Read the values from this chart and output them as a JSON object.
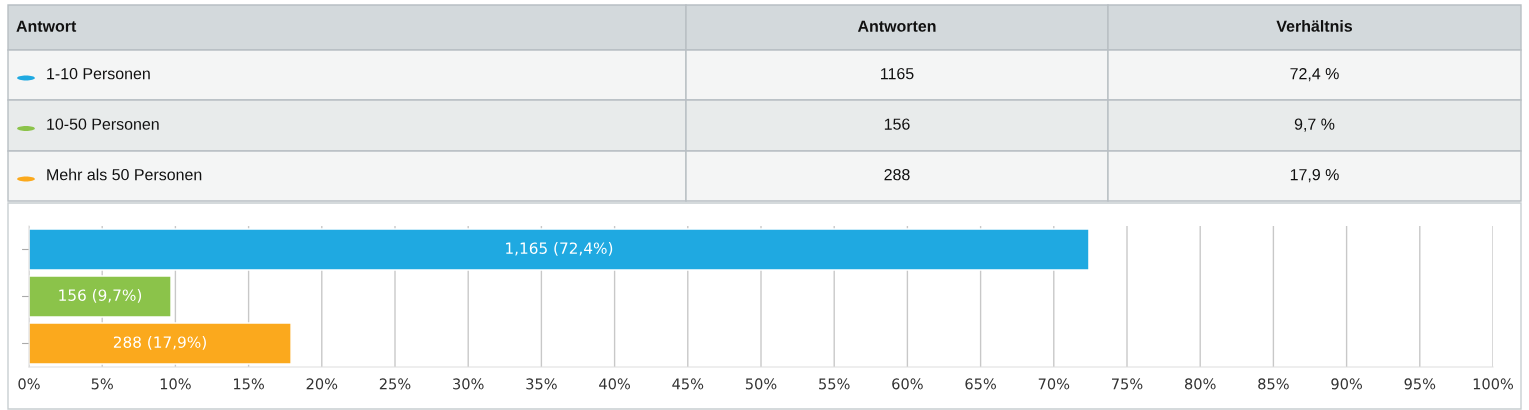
{
  "chart_data": [
    {
      "type": "other",
      "annotations": [
        "Antwort",
        "Antworten",
        "Verhältnis",
        "1-10 Personen",
        "1165",
        "72,4 %",
        "10-50 Personen",
        "156",
        "9,7 %",
        "Mehr als 50 Personen",
        "288",
        "17,9 %"
      ]
    },
    {
      "type": "bar",
      "orientation": "horizontal",
      "categories": [
        null,
        null,
        null
      ],
      "values": [
        72.4,
        9.7,
        17.9
      ],
      "colors": [
        "#1fa9e1",
        "#8bc34a",
        "#fba91d"
      ],
      "value_labels": [
        "1,165 (72,4%)",
        "156 (9,7%)",
        "288 (17,9%)"
      ],
      "xlim": [
        0,
        100
      ],
      "xticks": [
        {
          "value": 0,
          "label": "0%"
        },
        {
          "value": 5,
          "label": "5%"
        },
        {
          "value": 10,
          "label": "10%"
        },
        {
          "value": 15,
          "label": "15%"
        },
        {
          "value": 20,
          "label": "20%"
        },
        {
          "value": 25,
          "label": "25%"
        },
        {
          "value": 30,
          "label": "30%"
        },
        {
          "value": 35,
          "label": "35%"
        },
        {
          "value": 40,
          "label": "40%"
        },
        {
          "value": 45,
          "label": "45%"
        },
        {
          "value": 50,
          "label": "50%"
        },
        {
          "value": 55,
          "label": "55%"
        },
        {
          "value": 60,
          "label": "60%"
        },
        {
          "value": 65,
          "label": "65%"
        },
        {
          "value": 70,
          "label": "70%"
        },
        {
          "value": 75,
          "label": "75%"
        },
        {
          "value": 80,
          "label": "80%"
        },
        {
          "value": 85,
          "label": "85%"
        },
        {
          "value": 90,
          "label": "90%"
        },
        {
          "value": 95,
          "label": "95%"
        },
        {
          "value": 100,
          "label": "100%"
        }
      ],
      "grid": "x",
      "tick_labels": "x"
    }
  ]
}
